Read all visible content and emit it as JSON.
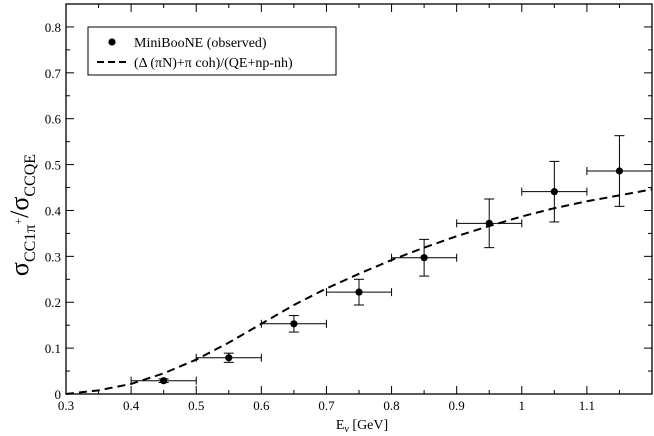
{
  "chart_data": {
    "type": "scatter",
    "title": "",
    "xlabel": {
      "main": "E",
      "sub": "ν",
      "unit": " [GeV]"
    },
    "ylabel": {
      "main": "σ",
      "num_sub": "CC1π",
      "num_sup": "+",
      "slash": "/",
      "den_main": "σ",
      "den_sub": "CCQE"
    },
    "xlim": [
      0.3,
      1.2
    ],
    "ylim": [
      0,
      0.85
    ],
    "x_ticks": [
      0.3,
      0.4,
      0.5,
      0.6,
      0.7,
      0.8,
      0.9,
      1.0,
      1.1
    ],
    "x_tick_labels": [
      "0.3",
      "0.4",
      "0.5",
      "0.6",
      "0.7",
      "0.8",
      "0.9",
      "1",
      "1.1"
    ],
    "y_ticks": [
      0,
      0.1,
      0.2,
      0.3,
      0.4,
      0.5,
      0.6,
      0.7,
      0.8
    ],
    "y_tick_labels": [
      "0",
      "0.1",
      "0.2",
      "0.3",
      "0.4",
      "0.5",
      "0.6",
      "0.7",
      "0.8"
    ],
    "legend_position": "top-left",
    "series": [
      {
        "name": "MiniBooNE (observed)",
        "kind": "points-with-errors",
        "color": "#000000",
        "points": [
          {
            "x": 0.45,
            "y": 0.029,
            "xerr": 0.05,
            "yerr": 0.004
          },
          {
            "x": 0.55,
            "y": 0.079,
            "xerr": 0.05,
            "yerr": 0.01
          },
          {
            "x": 0.65,
            "y": 0.153,
            "xerr": 0.05,
            "yerr": 0.018
          },
          {
            "x": 0.75,
            "y": 0.222,
            "xerr": 0.05,
            "yerr": 0.028
          },
          {
            "x": 0.85,
            "y": 0.297,
            "xerr": 0.05,
            "yerr": 0.04
          },
          {
            "x": 0.95,
            "y": 0.372,
            "xerr": 0.05,
            "yerr": 0.053
          },
          {
            "x": 1.05,
            "y": 0.441,
            "xerr": 0.05,
            "yerr": 0.066
          },
          {
            "x": 1.15,
            "y": 0.486,
            "xerr": 0.05,
            "yerr": 0.077
          }
        ]
      },
      {
        "name": "(Δ (πN)+π coh)/(QE+np-nh)",
        "kind": "dashed-line",
        "color": "#000000",
        "x": [
          0.3,
          0.35,
          0.4,
          0.45,
          0.5,
          0.55,
          0.6,
          0.65,
          0.7,
          0.75,
          0.8,
          0.85,
          0.9,
          0.95,
          1.0,
          1.05,
          1.1,
          1.15,
          1.2
        ],
        "y": [
          0.0,
          0.008,
          0.022,
          0.045,
          0.075,
          0.112,
          0.153,
          0.194,
          0.23,
          0.262,
          0.292,
          0.319,
          0.344,
          0.366,
          0.387,
          0.405,
          0.42,
          0.433,
          0.446
        ]
      }
    ]
  }
}
